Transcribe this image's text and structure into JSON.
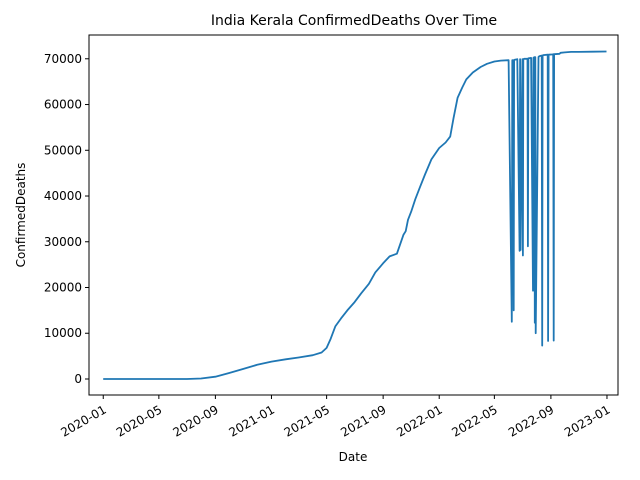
{
  "chart_data": {
    "type": "line",
    "title": "India Kerala ConfirmedDeaths Over Time",
    "xlabel": "Date",
    "ylabel": "ConfirmedDeaths",
    "x_type": "date",
    "xlim": [
      "2019-12-01",
      "2023-01-25"
    ],
    "ylim": [
      -3500,
      75200
    ],
    "x_ticks": [
      "2020-01",
      "2020-05",
      "2020-09",
      "2021-01",
      "2021-05",
      "2021-09",
      "2022-01",
      "2022-05",
      "2022-09",
      "2023-01"
    ],
    "y_ticks": [
      0,
      10000,
      20000,
      30000,
      40000,
      50000,
      60000,
      70000
    ],
    "grid": false,
    "legend": "none",
    "line_color": "#1f77b4",
    "series": [
      {
        "x": [
          "2020-01-01",
          "2020-04-01",
          "2020-07-01",
          "2020-08-01",
          "2020-09-01",
          "2020-10-01",
          "2020-11-01",
          "2020-12-01",
          "2021-01-01",
          "2021-02-01",
          "2021-03-01",
          "2021-04-01",
          "2021-04-20",
          "2021-05-01",
          "2021-05-10",
          "2021-05-20",
          "2021-06-01",
          "2021-06-15",
          "2021-07-01",
          "2021-07-15",
          "2021-08-01",
          "2021-08-15",
          "2021-09-01",
          "2021-09-15",
          "2021-10-01",
          "2021-10-15",
          "2021-10-20",
          "2021-10-25",
          "2021-11-01",
          "2021-11-10",
          "2021-11-20",
          "2021-12-01",
          "2021-12-15",
          "2022-01-01",
          "2022-01-15",
          "2022-01-25",
          "2022-02-01",
          "2022-02-10",
          "2022-02-20",
          "2022-03-01",
          "2022-03-15",
          "2022-04-01",
          "2022-04-15",
          "2022-05-01",
          "2022-05-15",
          "2022-06-01",
          "2022-06-08",
          "2022-06-09",
          "2022-06-10",
          "2022-06-11",
          "2022-06-12",
          "2022-06-13",
          "2022-06-14",
          "2022-06-20",
          "2022-06-25",
          "2022-06-26",
          "2022-06-27",
          "2022-07-01",
          "2022-07-02",
          "2022-07-03",
          "2022-07-04",
          "2022-07-05",
          "2022-07-06",
          "2022-07-12",
          "2022-07-13",
          "2022-07-14",
          "2022-07-15",
          "2022-07-20",
          "2022-07-24",
          "2022-07-25",
          "2022-07-26",
          "2022-07-27",
          "2022-07-28",
          "2022-07-29",
          "2022-07-30",
          "2022-08-05",
          "2022-08-06",
          "2022-08-07",
          "2022-08-08",
          "2022-08-12",
          "2022-08-13",
          "2022-08-14",
          "2022-08-15",
          "2022-08-25",
          "2022-08-26",
          "2022-08-27",
          "2022-09-05",
          "2022-09-06",
          "2022-09-07",
          "2022-09-08",
          "2022-09-20",
          "2022-09-21",
          "2022-09-22",
          "2022-10-01",
          "2022-10-15",
          "2022-11-01",
          "2022-12-01",
          "2022-12-31"
        ],
        "y": [
          0,
          0,
          0,
          100,
          500,
          1300,
          2200,
          3100,
          3800,
          4300,
          4700,
          5200,
          5800,
          6800,
          8800,
          11500,
          13200,
          15000,
          16800,
          18700,
          20800,
          23300,
          25300,
          26800,
          27400,
          31500,
          32300,
          34800,
          36600,
          39300,
          41900,
          44700,
          48000,
          50500,
          51700,
          53000,
          57000,
          61500,
          63700,
          65500,
          67000,
          68200,
          68900,
          69400,
          69600,
          69700,
          12500,
          69700,
          18500,
          69700,
          15000,
          69700,
          69800,
          69900,
          28000,
          69900,
          28200,
          69900,
          27000,
          69900,
          69950,
          70000,
          70000,
          70000,
          29000,
          70100,
          70100,
          70200,
          19300,
          70200,
          70300,
          70350,
          12300,
          70350,
          10000,
          70400,
          70500,
          70550,
          70600,
          70700,
          7300,
          70700,
          70800,
          70900,
          8300,
          70900,
          70950,
          71000,
          8400,
          71000,
          71100,
          71200,
          71300,
          71400,
          71500,
          71500,
          71550,
          71600
        ]
      }
    ]
  }
}
